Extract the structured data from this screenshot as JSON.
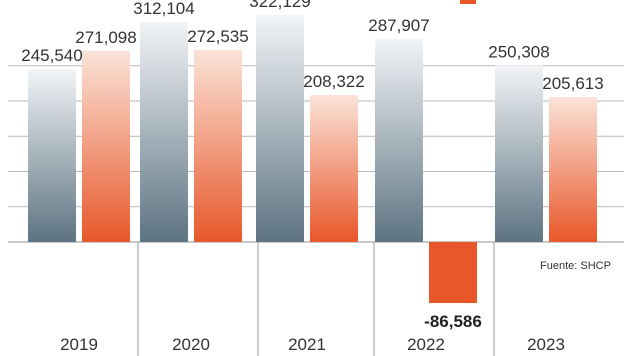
{
  "colors": {
    "series_a_top": "#f2f4f6",
    "series_a_bottom": "#5d7482",
    "series_b_top": "#fbe3d8",
    "series_b_bottom": "#e8572a",
    "negative": "#e8572a",
    "grid": "#b9b9b9",
    "divider": "#9a9a9a"
  },
  "source": "Fuente: SHCP",
  "chart_data": {
    "type": "bar",
    "categories": [
      "2019",
      "2020",
      "2021",
      "2022",
      "2023"
    ],
    "series": [
      {
        "values": [
          245540,
          312104,
          322129,
          287907,
          250308
        ]
      },
      {
        "values": [
          271098,
          272535,
          208322,
          -86586,
          205613
        ]
      }
    ],
    "value_labels": [
      [
        "245,540",
        "312,104",
        "322,129",
        "287,907",
        "250,308"
      ],
      [
        "271,098",
        "272,535",
        "208,322",
        "-86,586",
        "205,613"
      ]
    ],
    "ylim": [
      -110000,
      340000
    ],
    "grid": true
  }
}
